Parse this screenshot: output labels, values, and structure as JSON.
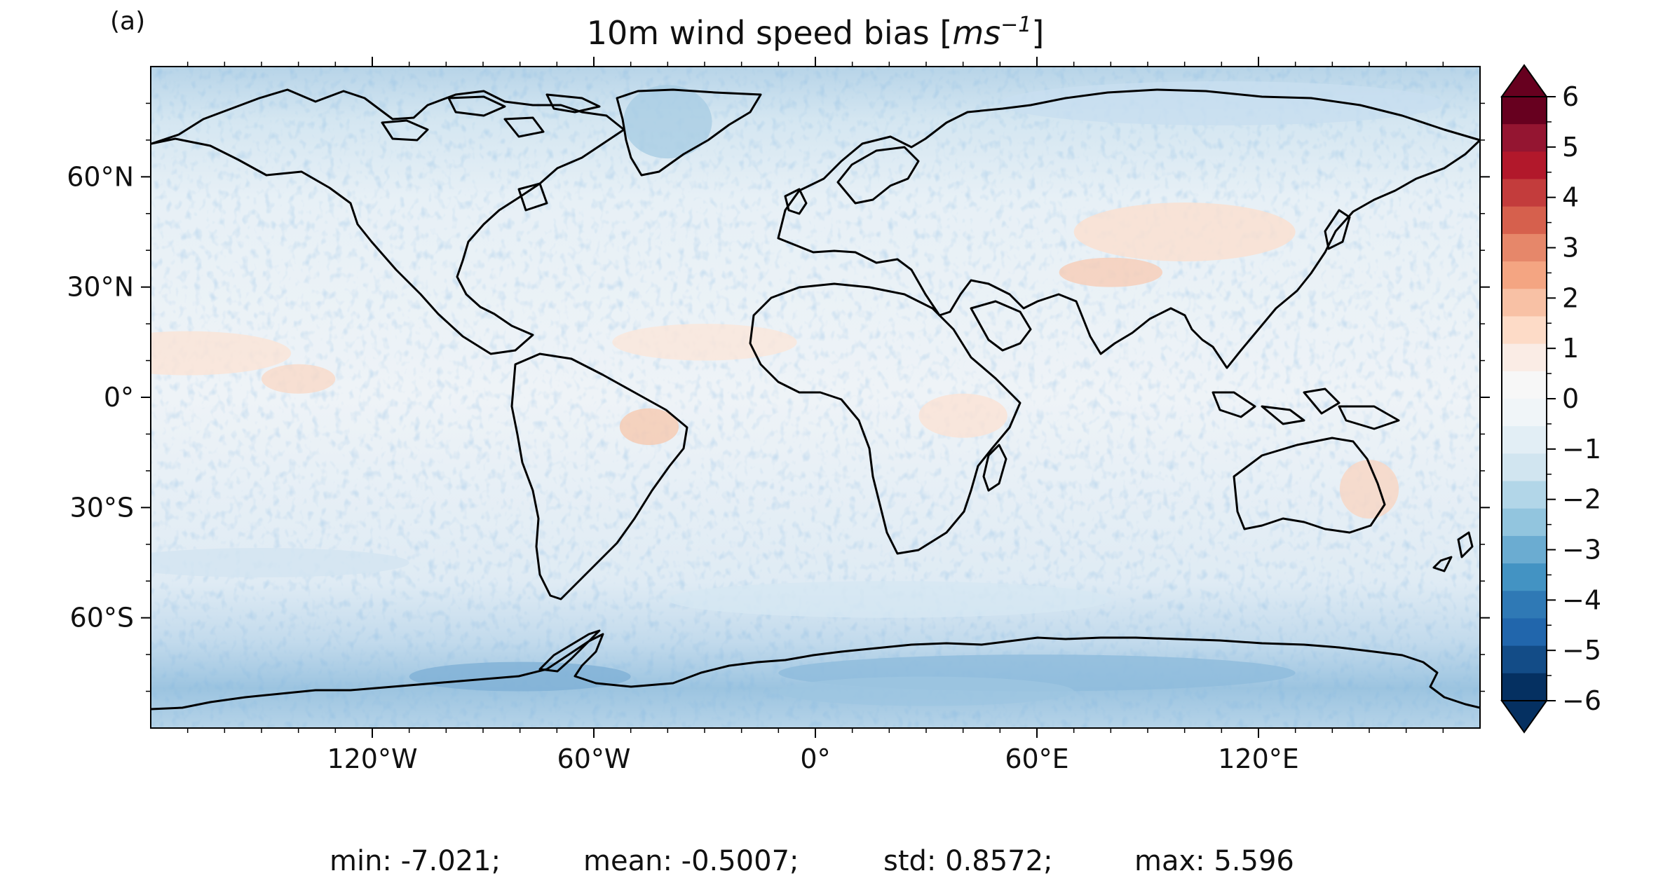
{
  "panel_label": "(a)",
  "title": {
    "text": "10m wind speed bias [",
    "unit_base": "ms",
    "unit_exp": "−1",
    "close": "]"
  },
  "map": {
    "projection": "PlateCarree",
    "lon_range": [
      -180,
      180
    ],
    "lat_range": [
      -90,
      90
    ],
    "lon_ticks": [
      {
        "value": -120,
        "label": "120°W"
      },
      {
        "value": -60,
        "label": "60°W"
      },
      {
        "value": 0,
        "label": "0°"
      },
      {
        "value": 60,
        "label": "60°E"
      },
      {
        "value": 120,
        "label": "120°E"
      }
    ],
    "lat_ticks": [
      {
        "value": 60,
        "label": "60°N"
      },
      {
        "value": 30,
        "label": "30°N"
      },
      {
        "value": 0,
        "label": "0°"
      },
      {
        "value": -30,
        "label": "30°S"
      },
      {
        "value": -60,
        "label": "60°S"
      }
    ],
    "coastlines": true,
    "colormap": "RdBu_r"
  },
  "colorbar": {
    "min": -6,
    "max": 6,
    "step": 0.5,
    "extend": "both",
    "tick_labels": [
      "6",
      "5",
      "4",
      "3",
      "2",
      "1",
      "0",
      "−1",
      "−2",
      "−3",
      "−4",
      "−5",
      "−6"
    ],
    "colors": [
      "#053061",
      "#134c87",
      "#2166ac",
      "#2f79b5",
      "#4393c3",
      "#6bacd1",
      "#92c5de",
      "#b2d6e8",
      "#d1e5f0",
      "#e2eef5",
      "#f0f5f8",
      "#f7f7f7",
      "#faece5",
      "#fddbc7",
      "#f8c1a5",
      "#f4a582",
      "#e6876a",
      "#d6604d",
      "#c33c3c",
      "#b2182b",
      "#941531",
      "#67001f"
    ]
  },
  "stats": {
    "min": "min: -7.021;",
    "mean": "mean: -0.5007;",
    "std": "std: 0.8572;",
    "max": "max: 5.596"
  }
}
